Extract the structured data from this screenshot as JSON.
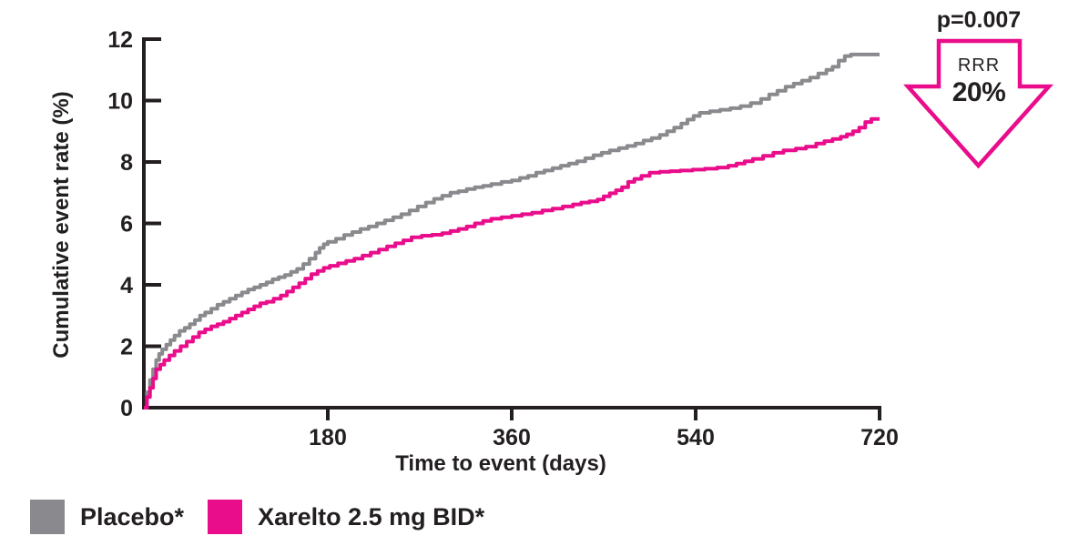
{
  "annotation": {
    "p_value": "p=0.007",
    "rrr_label": "RRR",
    "rrr_value": "20%"
  },
  "legend": {
    "items": [
      {
        "label": "Placebo*",
        "color": "#8a8a8e"
      },
      {
        "label": "Xarelto 2.5 mg BID*",
        "color": "#e90c8b"
      }
    ]
  },
  "colors": {
    "axis": "#231f20",
    "text": "#231f20",
    "accent": "#e90c8b",
    "placebo": "#8a8a8e",
    "xarelto": "#e90c8b",
    "background": "#ffffff"
  },
  "chart_data": {
    "type": "line",
    "subtype": "kaplan-meier-step",
    "title": "",
    "xlabel": "Time to event (days)",
    "ylabel": "Cumulative event rate (%)",
    "xlim": [
      0,
      720
    ],
    "ylim": [
      0,
      12
    ],
    "x_ticks": [
      180,
      360,
      540,
      720
    ],
    "y_ticks": [
      0,
      2,
      4,
      6,
      8,
      10,
      12
    ],
    "grid": false,
    "legend_position": "bottom-left",
    "annotations": [
      {
        "text": "p=0.007",
        "position": "top-right"
      },
      {
        "text": "RRR 20%",
        "shape": "down-arrow",
        "position": "top-right"
      }
    ],
    "series": [
      {
        "id": "placebo",
        "name": "Placebo",
        "color": "#8a8a8e",
        "final_value": 11.5,
        "points": [
          [
            0,
            0
          ],
          [
            3,
            0.5
          ],
          [
            6,
            0.9
          ],
          [
            9,
            1.25
          ],
          [
            12,
            1.55
          ],
          [
            15,
            1.75
          ],
          [
            18,
            1.9
          ],
          [
            22,
            2.05
          ],
          [
            26,
            2.2
          ],
          [
            30,
            2.35
          ],
          [
            35,
            2.5
          ],
          [
            40,
            2.6
          ],
          [
            45,
            2.72
          ],
          [
            50,
            2.85
          ],
          [
            55,
            3.0
          ],
          [
            60,
            3.1
          ],
          [
            66,
            3.22
          ],
          [
            72,
            3.35
          ],
          [
            78,
            3.45
          ],
          [
            84,
            3.55
          ],
          [
            90,
            3.65
          ],
          [
            96,
            3.75
          ],
          [
            102,
            3.85
          ],
          [
            108,
            3.92
          ],
          [
            114,
            4.0
          ],
          [
            120,
            4.08
          ],
          [
            126,
            4.18
          ],
          [
            132,
            4.25
          ],
          [
            138,
            4.32
          ],
          [
            144,
            4.42
          ],
          [
            150,
            4.52
          ],
          [
            156,
            4.68
          ],
          [
            162,
            4.85
          ],
          [
            168,
            5.05
          ],
          [
            172,
            5.2
          ],
          [
            176,
            5.32
          ],
          [
            180,
            5.4
          ],
          [
            188,
            5.5
          ],
          [
            196,
            5.62
          ],
          [
            204,
            5.72
          ],
          [
            212,
            5.82
          ],
          [
            220,
            5.9
          ],
          [
            228,
            6.0
          ],
          [
            236,
            6.1
          ],
          [
            244,
            6.2
          ],
          [
            252,
            6.3
          ],
          [
            260,
            6.42
          ],
          [
            268,
            6.55
          ],
          [
            276,
            6.68
          ],
          [
            284,
            6.8
          ],
          [
            292,
            6.9
          ],
          [
            300,
            7.0
          ],
          [
            308,
            7.05
          ],
          [
            316,
            7.12
          ],
          [
            324,
            7.18
          ],
          [
            332,
            7.22
          ],
          [
            340,
            7.28
          ],
          [
            350,
            7.35
          ],
          [
            360,
            7.4
          ],
          [
            368,
            7.48
          ],
          [
            376,
            7.55
          ],
          [
            384,
            7.65
          ],
          [
            392,
            7.72
          ],
          [
            400,
            7.8
          ],
          [
            408,
            7.88
          ],
          [
            416,
            7.95
          ],
          [
            424,
            8.02
          ],
          [
            432,
            8.12
          ],
          [
            440,
            8.22
          ],
          [
            448,
            8.3
          ],
          [
            456,
            8.38
          ],
          [
            465,
            8.45
          ],
          [
            473,
            8.52
          ],
          [
            481,
            8.6
          ],
          [
            489,
            8.7
          ],
          [
            497,
            8.78
          ],
          [
            505,
            8.88
          ],
          [
            512,
            9.0
          ],
          [
            519,
            9.12
          ],
          [
            526,
            9.25
          ],
          [
            532,
            9.38
          ],
          [
            538,
            9.5
          ],
          [
            544,
            9.6
          ],
          [
            554,
            9.65
          ],
          [
            564,
            9.7
          ],
          [
            574,
            9.75
          ],
          [
            584,
            9.82
          ],
          [
            594,
            9.92
          ],
          [
            604,
            10.05
          ],
          [
            612,
            10.2
          ],
          [
            620,
            10.32
          ],
          [
            628,
            10.45
          ],
          [
            636,
            10.55
          ],
          [
            644,
            10.65
          ],
          [
            652,
            10.75
          ],
          [
            660,
            10.88
          ],
          [
            668,
            11.0
          ],
          [
            674,
            11.1
          ],
          [
            680,
            11.3
          ],
          [
            686,
            11.45
          ],
          [
            692,
            11.5
          ],
          [
            720,
            11.5
          ]
        ]
      },
      {
        "id": "xarelto",
        "name": "Xarelto 2.5 mg BID",
        "color": "#e90c8b",
        "final_value": 9.4,
        "points": [
          [
            0,
            0
          ],
          [
            3,
            0.35
          ],
          [
            6,
            0.65
          ],
          [
            9,
            0.95
          ],
          [
            12,
            1.25
          ],
          [
            16,
            1.4
          ],
          [
            20,
            1.55
          ],
          [
            25,
            1.7
          ],
          [
            30,
            1.85
          ],
          [
            36,
            2.0
          ],
          [
            42,
            2.15
          ],
          [
            48,
            2.3
          ],
          [
            54,
            2.45
          ],
          [
            60,
            2.55
          ],
          [
            66,
            2.65
          ],
          [
            72,
            2.72
          ],
          [
            78,
            2.8
          ],
          [
            84,
            2.9
          ],
          [
            90,
            3.0
          ],
          [
            96,
            3.1
          ],
          [
            102,
            3.2
          ],
          [
            108,
            3.3
          ],
          [
            114,
            3.4
          ],
          [
            120,
            3.45
          ],
          [
            127,
            3.55
          ],
          [
            134,
            3.65
          ],
          [
            140,
            3.78
          ],
          [
            146,
            3.92
          ],
          [
            152,
            4.05
          ],
          [
            158,
            4.2
          ],
          [
            164,
            4.35
          ],
          [
            170,
            4.45
          ],
          [
            176,
            4.55
          ],
          [
            182,
            4.62
          ],
          [
            190,
            4.7
          ],
          [
            198,
            4.78
          ],
          [
            206,
            4.85
          ],
          [
            214,
            4.95
          ],
          [
            222,
            5.05
          ],
          [
            230,
            5.15
          ],
          [
            238,
            5.25
          ],
          [
            246,
            5.35
          ],
          [
            254,
            5.45
          ],
          [
            262,
            5.55
          ],
          [
            272,
            5.6
          ],
          [
            282,
            5.63
          ],
          [
            292,
            5.68
          ],
          [
            300,
            5.75
          ],
          [
            308,
            5.82
          ],
          [
            316,
            5.9
          ],
          [
            324,
            6.0
          ],
          [
            332,
            6.08
          ],
          [
            340,
            6.15
          ],
          [
            350,
            6.2
          ],
          [
            360,
            6.25
          ],
          [
            370,
            6.3
          ],
          [
            380,
            6.35
          ],
          [
            390,
            6.42
          ],
          [
            400,
            6.48
          ],
          [
            410,
            6.55
          ],
          [
            420,
            6.62
          ],
          [
            428,
            6.68
          ],
          [
            436,
            6.72
          ],
          [
            444,
            6.78
          ],
          [
            450,
            6.88
          ],
          [
            456,
            6.98
          ],
          [
            462,
            7.08
          ],
          [
            468,
            7.18
          ],
          [
            474,
            7.35
          ],
          [
            480,
            7.45
          ],
          [
            487,
            7.55
          ],
          [
            495,
            7.65
          ],
          [
            505,
            7.68
          ],
          [
            515,
            7.7
          ],
          [
            525,
            7.72
          ],
          [
            537,
            7.75
          ],
          [
            549,
            7.78
          ],
          [
            561,
            7.82
          ],
          [
            572,
            7.88
          ],
          [
            580,
            7.95
          ],
          [
            588,
            8.02
          ],
          [
            596,
            8.1
          ],
          [
            606,
            8.2
          ],
          [
            616,
            8.3
          ],
          [
            626,
            8.38
          ],
          [
            638,
            8.44
          ],
          [
            648,
            8.5
          ],
          [
            658,
            8.6
          ],
          [
            666,
            8.68
          ],
          [
            674,
            8.75
          ],
          [
            682,
            8.82
          ],
          [
            688,
            8.9
          ],
          [
            694,
            9.0
          ],
          [
            700,
            9.12
          ],
          [
            706,
            9.3
          ],
          [
            712,
            9.4
          ],
          [
            720,
            9.4
          ]
        ]
      }
    ]
  }
}
